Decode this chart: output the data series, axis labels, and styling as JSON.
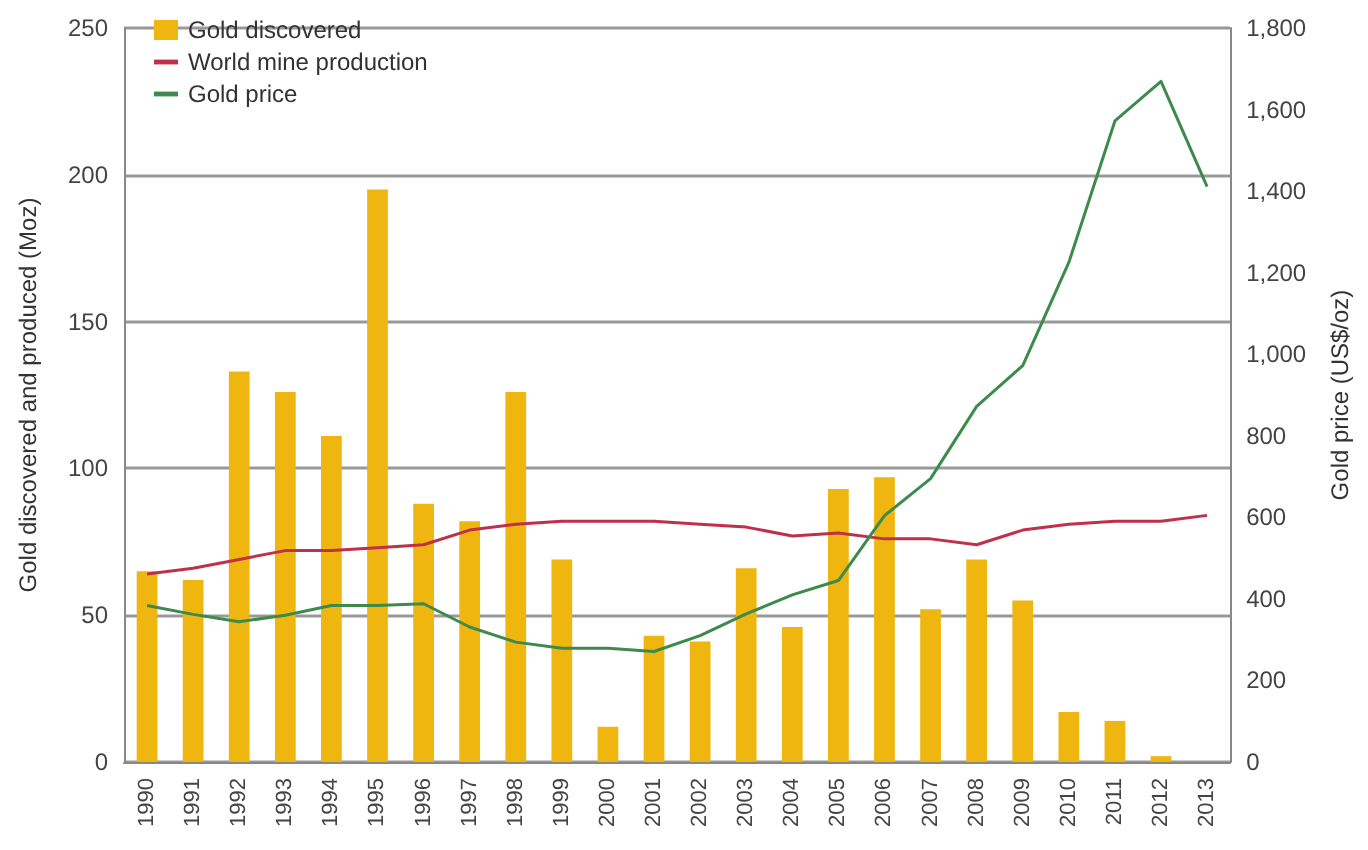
{
  "chart_data": {
    "type": "bar",
    "categories": [
      "1990",
      "1991",
      "1992",
      "1993",
      "1994",
      "1995",
      "1996",
      "1997",
      "1998",
      "1999",
      "2000",
      "2001",
      "2002",
      "2003",
      "2004",
      "2005",
      "2006",
      "2007",
      "2008",
      "2009",
      "2010",
      "2011",
      "2012",
      "2013"
    ],
    "series": [
      {
        "name": "Gold discovered",
        "color": "#eeb60f",
        "values": [
          65,
          62,
          133,
          126,
          111,
          195,
          88,
          82,
          126,
          69,
          12,
          43,
          41,
          66,
          46,
          93,
          97,
          52,
          69,
          55,
          17,
          14,
          2,
          null
        ]
      },
      {
        "name": "World mine production",
        "type": "line",
        "color": "#c0304a",
        "values": [
          64,
          66,
          69,
          72,
          72,
          73,
          74,
          79,
          81,
          82,
          82,
          82,
          81,
          80,
          77,
          78,
          76,
          76,
          74,
          79,
          81,
          82,
          82,
          84
        ]
      },
      {
        "name": "Gold price",
        "type": "line",
        "axis": "y2",
        "color": "#3d8a4c",
        "values": [
          384,
          362,
          344,
          360,
          384,
          384,
          388,
          331,
          294,
          279,
          279,
          271,
          310,
          363,
          410,
          445,
          604,
          695,
          872,
          972,
          1225,
          1572,
          1669,
          1411
        ]
      }
    ],
    "ylabel": "Gold discovered and produced (Moz)",
    "y2label": "Gold price (US$/oz)",
    "ylim": [
      0,
      250
    ],
    "yticks": [
      0,
      50,
      100,
      150,
      200,
      250
    ],
    "y2lim": [
      0,
      1800
    ],
    "y2ticks": [
      {
        "value": 0,
        "label": "0"
      },
      {
        "value": 200,
        "label": "200"
      },
      {
        "value": 400,
        "label": "400"
      },
      {
        "value": 600,
        "label": "600"
      },
      {
        "value": 800,
        "label": "800"
      },
      {
        "value": 1000,
        "label": "1,000"
      },
      {
        "value": 1200,
        "label": "1,200"
      },
      {
        "value": 1400,
        "label": "1,400"
      },
      {
        "value": 1600,
        "label": "1,600"
      },
      {
        "value": 1800,
        "label": "1,800"
      }
    ],
    "grid": "y",
    "legend": "top left",
    "marker": "none",
    "line_style": "solid"
  }
}
